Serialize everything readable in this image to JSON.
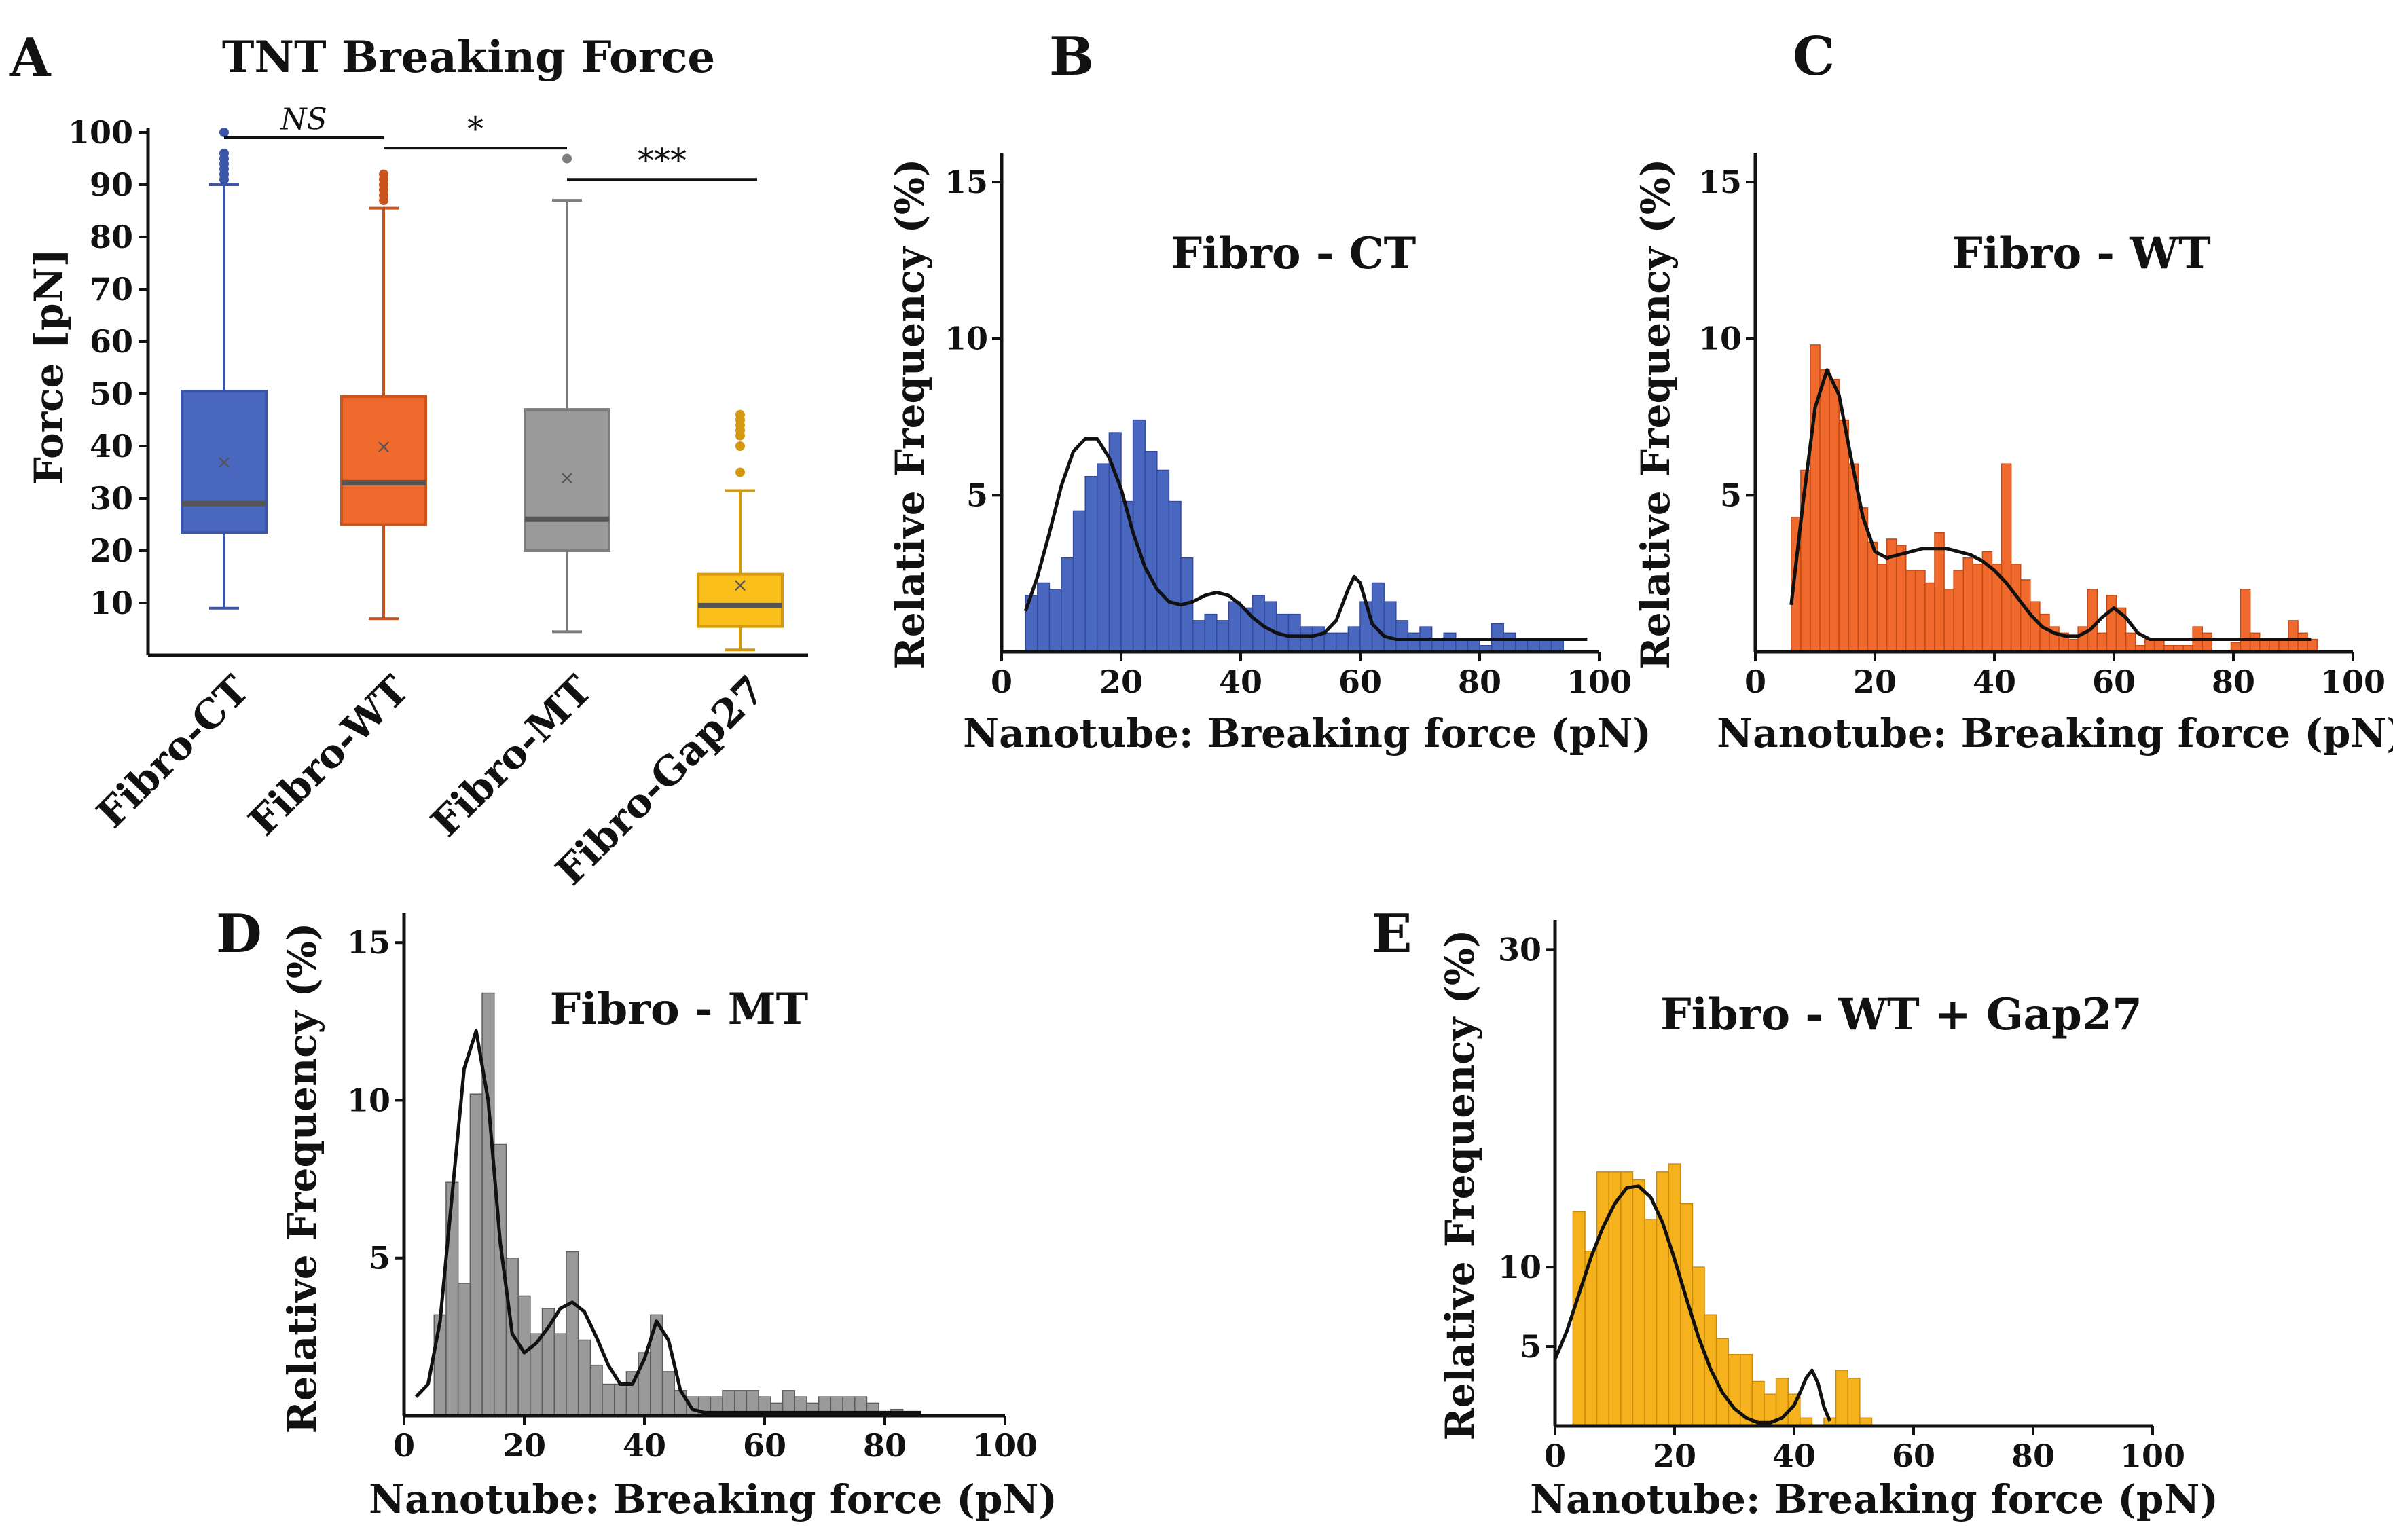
{
  "colors": {
    "blue": "#4a67c0",
    "orange": "#ef6a2c",
    "gray": "#9a9a9a",
    "yellow": "#f5b21d",
    "gap27_box": "#fbbf1c",
    "line": "#111111"
  },
  "chart_data": [
    {
      "panel": "A",
      "type": "box",
      "title": "TNT Breaking Force",
      "ylabel": "Force [pN]",
      "ylim": [
        0,
        100
      ],
      "yticks": [
        10,
        20,
        30,
        40,
        50,
        60,
        70,
        80,
        90,
        100
      ],
      "categories": [
        "Fibro-CT",
        "Fibro-WT",
        "Fibro-MT",
        "Fibro-Gap27"
      ],
      "boxes": [
        {
          "name": "Fibro-CT",
          "whisker_low": 9,
          "q1": 23.5,
          "median": 29,
          "mean": 37,
          "q3": 50.5,
          "whisker_high": 90,
          "outliers": [
            91,
            92,
            93,
            94,
            95,
            96,
            100
          ]
        },
        {
          "name": "Fibro-WT",
          "whisker_low": 7,
          "q1": 25,
          "median": 33,
          "mean": 40,
          "q3": 49.5,
          "whisker_high": 85.5,
          "outliers": [
            87,
            88,
            89,
            90,
            91,
            92
          ]
        },
        {
          "name": "Fibro-MT",
          "whisker_low": 4.5,
          "q1": 20,
          "median": 26,
          "mean": 34,
          "q3": 47,
          "whisker_high": 87,
          "outliers": [
            95
          ]
        },
        {
          "name": "Fibro-Gap27",
          "whisker_low": 1,
          "q1": 5.5,
          "median": 9.5,
          "mean": 13.5,
          "q3": 15.5,
          "whisker_high": 31.5,
          "outliers": [
            35,
            40,
            42,
            43,
            44,
            45,
            46
          ]
        }
      ],
      "significance": [
        {
          "label": "NS",
          "from": "Fibro-CT",
          "to": "Fibro-WT",
          "y": 99
        },
        {
          "label": "*",
          "from": "Fibro-WT",
          "to": "Fibro-MT",
          "y": 97
        },
        {
          "label": "***",
          "from": "Fibro-MT",
          "to": "Fibro-Gap27",
          "y": 91
        }
      ]
    },
    {
      "panel": "B",
      "type": "histogram",
      "title": "Fibro - CT",
      "xlabel": "Nanotube: Breaking force (pN)",
      "ylabel": "Relative Frequency (%)",
      "xlim": [
        0,
        100
      ],
      "ylim": [
        0,
        15.5
      ],
      "xticks": [
        0,
        20,
        40,
        60,
        80,
        100
      ],
      "yticks": [
        5,
        10,
        15
      ],
      "bin_width": 2,
      "bins_start": 4,
      "values": [
        1.8,
        2.2,
        2.0,
        3.0,
        4.5,
        5.6,
        6.0,
        7.0,
        4.8,
        7.4,
        6.4,
        5.8,
        4.8,
        3.0,
        1.0,
        1.2,
        1.0,
        1.6,
        1.4,
        1.8,
        1.6,
        1.2,
        1.2,
        0.8,
        0.8,
        0.6,
        0.6,
        0.8,
        1.6,
        2.2,
        1.6,
        1.0,
        0.6,
        0.8,
        0.4,
        0.6,
        0.4,
        0.4,
        0.2,
        0.9,
        0.6,
        0.4,
        0.4,
        0.4,
        0.4
      ],
      "curve": {
        "x": [
          4,
          6,
          8,
          10,
          12,
          14,
          16,
          18,
          20,
          22,
          24,
          26,
          28,
          30,
          32,
          34,
          36,
          38,
          40,
          42,
          44,
          46,
          48,
          50,
          52,
          54,
          56,
          58,
          59,
          60,
          62,
          64,
          66,
          70,
          80,
          90,
          98
        ],
        "y": [
          1.3,
          2.4,
          3.8,
          5.3,
          6.4,
          6.8,
          6.8,
          6.2,
          5.2,
          3.8,
          2.7,
          2.0,
          1.6,
          1.5,
          1.6,
          1.8,
          1.9,
          1.8,
          1.5,
          1.1,
          0.8,
          0.6,
          0.5,
          0.5,
          0.5,
          0.6,
          1.0,
          2.0,
          2.4,
          2.2,
          0.9,
          0.5,
          0.4,
          0.4,
          0.4,
          0.4,
          0.4
        ]
      }
    },
    {
      "panel": "C",
      "type": "histogram",
      "title": "Fibro - WT",
      "xlabel": "Nanotube: Breaking force (pN)",
      "ylabel": "Relative Frequency (%)",
      "xlim": [
        0,
        100
      ],
      "ylim": [
        0,
        15.5
      ],
      "xticks": [
        0,
        20,
        40,
        60,
        80,
        100
      ],
      "yticks": [
        5,
        10,
        15
      ],
      "bin_width": 1.6,
      "bins_start": 6,
      "values": [
        4.3,
        5.8,
        9.8,
        9.0,
        8.7,
        7.4,
        6.0,
        4.6,
        3.5,
        2.8,
        3.6,
        3.4,
        2.6,
        2.6,
        2.2,
        3.8,
        2.0,
        2.6,
        3.0,
        2.8,
        3.2,
        2.8,
        6.0,
        2.8,
        2.3,
        1.6,
        1.2,
        0.8,
        0.6,
        0.4,
        0.8,
        2.0,
        0.6,
        1.8,
        1.4,
        0.6,
        0.2,
        0.4,
        0.4,
        0.2,
        0.2,
        0.2,
        0.8,
        0.6,
        0.0,
        0.0,
        0.3,
        2.0,
        0.6,
        0.4,
        0.4,
        0.4,
        1.0,
        0.6,
        0.4
      ],
      "curve": {
        "x": [
          6,
          8,
          10,
          12,
          14,
          16,
          18,
          20,
          22,
          24,
          26,
          28,
          30,
          32,
          34,
          36,
          38,
          40,
          42,
          44,
          46,
          48,
          50,
          52,
          54,
          56,
          58,
          60,
          62,
          64,
          66,
          70,
          80,
          90,
          93
        ],
        "y": [
          1.5,
          4.8,
          7.8,
          9.0,
          8.2,
          6.2,
          4.3,
          3.2,
          3.0,
          3.1,
          3.2,
          3.3,
          3.3,
          3.3,
          3.2,
          3.1,
          2.9,
          2.6,
          2.2,
          1.7,
          1.2,
          0.8,
          0.6,
          0.5,
          0.5,
          0.7,
          1.1,
          1.4,
          1.1,
          0.6,
          0.4,
          0.4,
          0.4,
          0.4,
          0.4
        ]
      }
    },
    {
      "panel": "D",
      "type": "histogram",
      "title": "Fibro - MT",
      "xlabel": "Nanotube: Breaking force (pN)",
      "ylabel": "Relative Frequency (%)",
      "xlim": [
        0,
        100
      ],
      "ylim": [
        0,
        15.5
      ],
      "xticks": [
        0,
        20,
        40,
        60,
        80,
        100
      ],
      "yticks": [
        5,
        10,
        15
      ],
      "bin_width": 2,
      "bins_start": 5,
      "values": [
        3.2,
        7.4,
        4.2,
        10.2,
        13.4,
        8.6,
        5.0,
        3.8,
        2.6,
        3.4,
        2.6,
        5.2,
        2.4,
        1.6,
        1.0,
        1.0,
        1.4,
        2.0,
        3.2,
        1.4,
        0.8,
        0.6,
        0.6,
        0.6,
        0.8,
        0.8,
        0.8,
        0.6,
        0.4,
        0.8,
        0.6,
        0.4,
        0.6,
        0.6,
        0.6,
        0.6,
        0.4,
        0.0,
        0.2
      ],
      "curve": {
        "x": [
          2,
          4,
          6,
          8,
          10,
          12,
          14,
          16,
          18,
          20,
          22,
          24,
          26,
          28,
          30,
          32,
          34,
          36,
          38,
          40,
          42,
          44,
          46,
          48,
          50,
          55,
          60,
          70,
          80,
          86
        ],
        "y": [
          0.6,
          1.0,
          3.0,
          7.0,
          11.0,
          12.2,
          10.0,
          5.5,
          2.6,
          2.0,
          2.3,
          2.8,
          3.4,
          3.6,
          3.3,
          2.5,
          1.6,
          1.0,
          1.0,
          1.8,
          3.0,
          2.4,
          0.8,
          0.2,
          0.1,
          0.1,
          0.1,
          0.1,
          0.1,
          0.1
        ]
      }
    },
    {
      "panel": "E",
      "type": "histogram",
      "title": "Fibro - WT + Gap27",
      "xlabel": "Nanotube: Breaking force (pN)",
      "ylabel": "Relative Frequency (%)",
      "xlim": [
        0,
        100
      ],
      "ylim": [
        0,
        31
      ],
      "xticks": [
        0,
        20,
        40,
        60,
        80,
        100
      ],
      "yticks": [
        5,
        10,
        30
      ],
      "bin_width": 2,
      "bins_start": 3,
      "values": [
        13.5,
        11.0,
        16.0,
        16.0,
        16.0,
        15.5,
        13.0,
        16.0,
        16.5,
        14.0,
        10.0,
        7.0,
        5.5,
        4.5,
        4.5,
        2.8,
        2.0,
        3.0,
        2.0,
        0.5,
        0.0,
        0.5,
        3.5,
        3.0,
        0.5
      ],
      "curve": {
        "x": [
          0,
          2,
          4,
          6,
          8,
          10,
          12,
          14,
          16,
          18,
          20,
          22,
          24,
          26,
          28,
          30,
          32,
          34,
          36,
          38,
          40,
          41,
          42,
          43,
          44,
          45,
          46
        ],
        "y": [
          4.2,
          6.0,
          8.3,
          10.6,
          12.5,
          14.0,
          15.0,
          15.1,
          14.4,
          12.8,
          10.5,
          8.0,
          5.6,
          3.6,
          2.1,
          1.1,
          0.5,
          0.2,
          0.2,
          0.5,
          1.3,
          2.1,
          3.0,
          3.5,
          2.7,
          1.2,
          0.3
        ]
      }
    }
  ]
}
